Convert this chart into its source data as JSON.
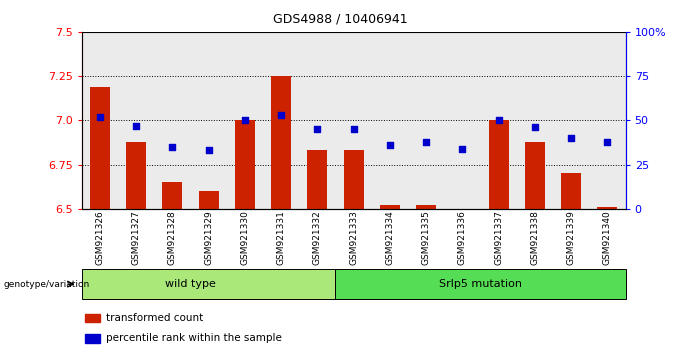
{
  "title": "GDS4988 / 10406941",
  "samples": [
    "GSM921326",
    "GSM921327",
    "GSM921328",
    "GSM921329",
    "GSM921330",
    "GSM921331",
    "GSM921332",
    "GSM921333",
    "GSM921334",
    "GSM921335",
    "GSM921336",
    "GSM921337",
    "GSM921338",
    "GSM921339",
    "GSM921340"
  ],
  "red_values": [
    7.19,
    6.88,
    6.65,
    6.6,
    7.0,
    7.25,
    6.83,
    6.83,
    6.52,
    6.52,
    6.5,
    7.0,
    6.88,
    6.7,
    6.51
  ],
  "blue_values": [
    52,
    47,
    35,
    33,
    50,
    53,
    45,
    45,
    36,
    38,
    34,
    50,
    46,
    40,
    38
  ],
  "ylim_left": [
    6.5,
    7.5
  ],
  "ylim_right": [
    0,
    100
  ],
  "yticks_left": [
    6.5,
    6.75,
    7.0,
    7.25,
    7.5
  ],
  "yticks_right": [
    0,
    25,
    50,
    75,
    100
  ],
  "ytick_labels_right": [
    "0",
    "25",
    "50",
    "75",
    "100%"
  ],
  "bar_color": "#cc2200",
  "dot_color": "#0000cc",
  "wild_type_label": "wild type",
  "mutation_label": "Srlp5 mutation",
  "group_label": "genotype/variation",
  "legend_red": "transformed count",
  "legend_blue": "percentile rank within the sample",
  "light_green": "#aae87a",
  "dark_green": "#55dd55",
  "col_bg": "#d8d8d8"
}
